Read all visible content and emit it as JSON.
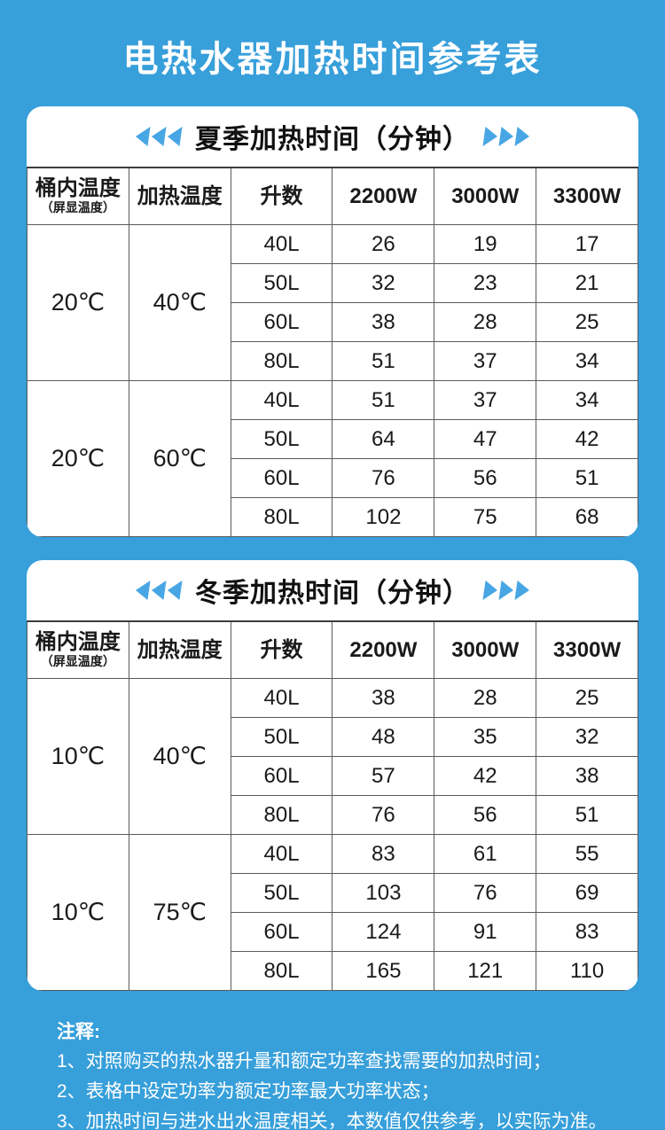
{
  "page": {
    "title": "电热水器加热时间参考表"
  },
  "colors": {
    "background": "#379FDA",
    "arrow": "#48A6E4",
    "card": "#FFFFFF",
    "table_border": "#5a5a5a",
    "text": "#1a1a1a",
    "title_text": "#FFFFFF"
  },
  "header": {
    "tank_main": "桶内温度",
    "tank_sub": "（屏显温度）",
    "heat": "加热温度",
    "liters": "升数",
    "powers": [
      "2200W",
      "3000W",
      "3300W"
    ]
  },
  "tables": [
    {
      "title": "夏季加热时间（分钟）",
      "groups": [
        {
          "tank_temp": "20℃",
          "heat_temp": "40℃",
          "rows": [
            [
              "40L",
              "26",
              "19",
              "17"
            ],
            [
              "50L",
              "32",
              "23",
              "21"
            ],
            [
              "60L",
              "38",
              "28",
              "25"
            ],
            [
              "80L",
              "51",
              "37",
              "34"
            ]
          ]
        },
        {
          "tank_temp": "20℃",
          "heat_temp": "60℃",
          "rows": [
            [
              "40L",
              "51",
              "37",
              "34"
            ],
            [
              "50L",
              "64",
              "47",
              "42"
            ],
            [
              "60L",
              "76",
              "56",
              "51"
            ],
            [
              "80L",
              "102",
              "75",
              "68"
            ]
          ]
        }
      ]
    },
    {
      "title": "冬季加热时间（分钟）",
      "groups": [
        {
          "tank_temp": "10℃",
          "heat_temp": "40℃",
          "rows": [
            [
              "40L",
              "38",
              "28",
              "25"
            ],
            [
              "50L",
              "48",
              "35",
              "32"
            ],
            [
              "60L",
              "57",
              "42",
              "38"
            ],
            [
              "80L",
              "76",
              "56",
              "51"
            ]
          ]
        },
        {
          "tank_temp": "10℃",
          "heat_temp": "75℃",
          "rows": [
            [
              "40L",
              "83",
              "61",
              "55"
            ],
            [
              "50L",
              "103",
              "76",
              "69"
            ],
            [
              "60L",
              "124",
              "91",
              "83"
            ],
            [
              "80L",
              "165",
              "121",
              "110"
            ]
          ]
        }
      ]
    }
  ],
  "notes": {
    "title": "注释:",
    "items": [
      "1、对照购买的热水器升量和额定功率查找需要的加热时间；",
      "2、表格中设定功率为额定功率最大功率状态；",
      "3、加热时间与进水出水温度相关，本数值仅供参考，以实际为准。"
    ]
  }
}
